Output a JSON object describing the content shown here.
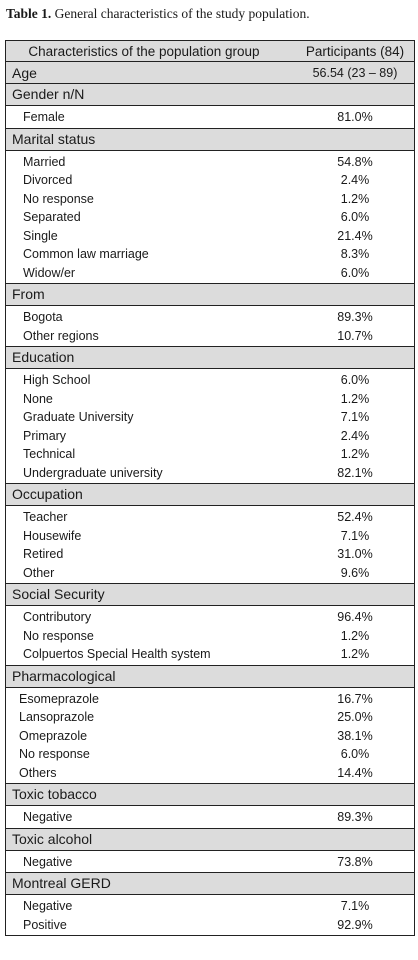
{
  "caption": {
    "label": "Table 1.",
    "text": " General characteristics of the study population."
  },
  "header": {
    "col1": "Characteristics of the population group",
    "col2": "Participants (84)"
  },
  "age": {
    "label": "Age",
    "value": "56.54 (23 – 89)"
  },
  "sections": [
    {
      "title": "Gender n/N",
      "rows": [
        {
          "label": "Female",
          "value": "81.0%"
        }
      ]
    },
    {
      "title": "Marital status",
      "rows": [
        {
          "label": "Married",
          "value": "54.8%"
        },
        {
          "label": "Divorced",
          "value": "2.4%"
        },
        {
          "label": "No response",
          "value": "1.2%"
        },
        {
          "label": "Separated",
          "value": "6.0%"
        },
        {
          "label": "Single",
          "value": "21.4%"
        },
        {
          "label": "Common law marriage",
          "value": "8.3%"
        },
        {
          "label": "Widow/er",
          "value": "6.0%"
        }
      ]
    },
    {
      "title": "From",
      "rows": [
        {
          "label": "Bogota",
          "value": "89.3%"
        },
        {
          "label": "Other regions",
          "value": "10.7%"
        }
      ]
    },
    {
      "title": "Education",
      "rows": [
        {
          "label": "High School",
          "value": "6.0%"
        },
        {
          "label": "None",
          "value": "1.2%"
        },
        {
          "label": "Graduate University",
          "value": "7.1%"
        },
        {
          "label": "Primary",
          "value": "2.4%"
        },
        {
          "label": "Technical",
          "value": "1.2%"
        },
        {
          "label": "Undergraduate university",
          "value": "82.1%"
        }
      ]
    },
    {
      "title": "Occupation",
      "rows": [
        {
          "label": "Teacher",
          "value": "52.4%"
        },
        {
          "label": "Housewife",
          "value": "7.1%"
        },
        {
          "label": "Retired",
          "value": "31.0%"
        },
        {
          "label": "Other",
          "value": "9.6%"
        }
      ]
    },
    {
      "title": "Social Security",
      "rows": [
        {
          "label": "Contributory",
          "value": "96.4%"
        },
        {
          "label": "No response",
          "value": "1.2%"
        },
        {
          "label": "Colpuertos Special Health system",
          "value": "1.2%"
        }
      ]
    },
    {
      "title": "Pharmacological",
      "tight": true,
      "rows": [
        {
          "label": "Esomeprazole",
          "value": "16.7%"
        },
        {
          "label": "Lansoprazole",
          "value": "25.0%"
        },
        {
          "label": "Omeprazole",
          "value": "38.1%"
        },
        {
          "label": "No response",
          "value": "6.0%"
        },
        {
          "label": "Others",
          "value": "14.4%"
        }
      ]
    },
    {
      "title": "Toxic tobacco",
      "rows": [
        {
          "label": "Negative",
          "value": "89.3%"
        }
      ]
    },
    {
      "title": "Toxic alcohol",
      "rows": [
        {
          "label": "Negative",
          "value": "73.8%"
        }
      ]
    },
    {
      "title": "Montreal GERD",
      "rows": [
        {
          "label": "Negative",
          "value": "7.1%"
        },
        {
          "label": "Positive",
          "value": "92.9%"
        }
      ]
    }
  ]
}
